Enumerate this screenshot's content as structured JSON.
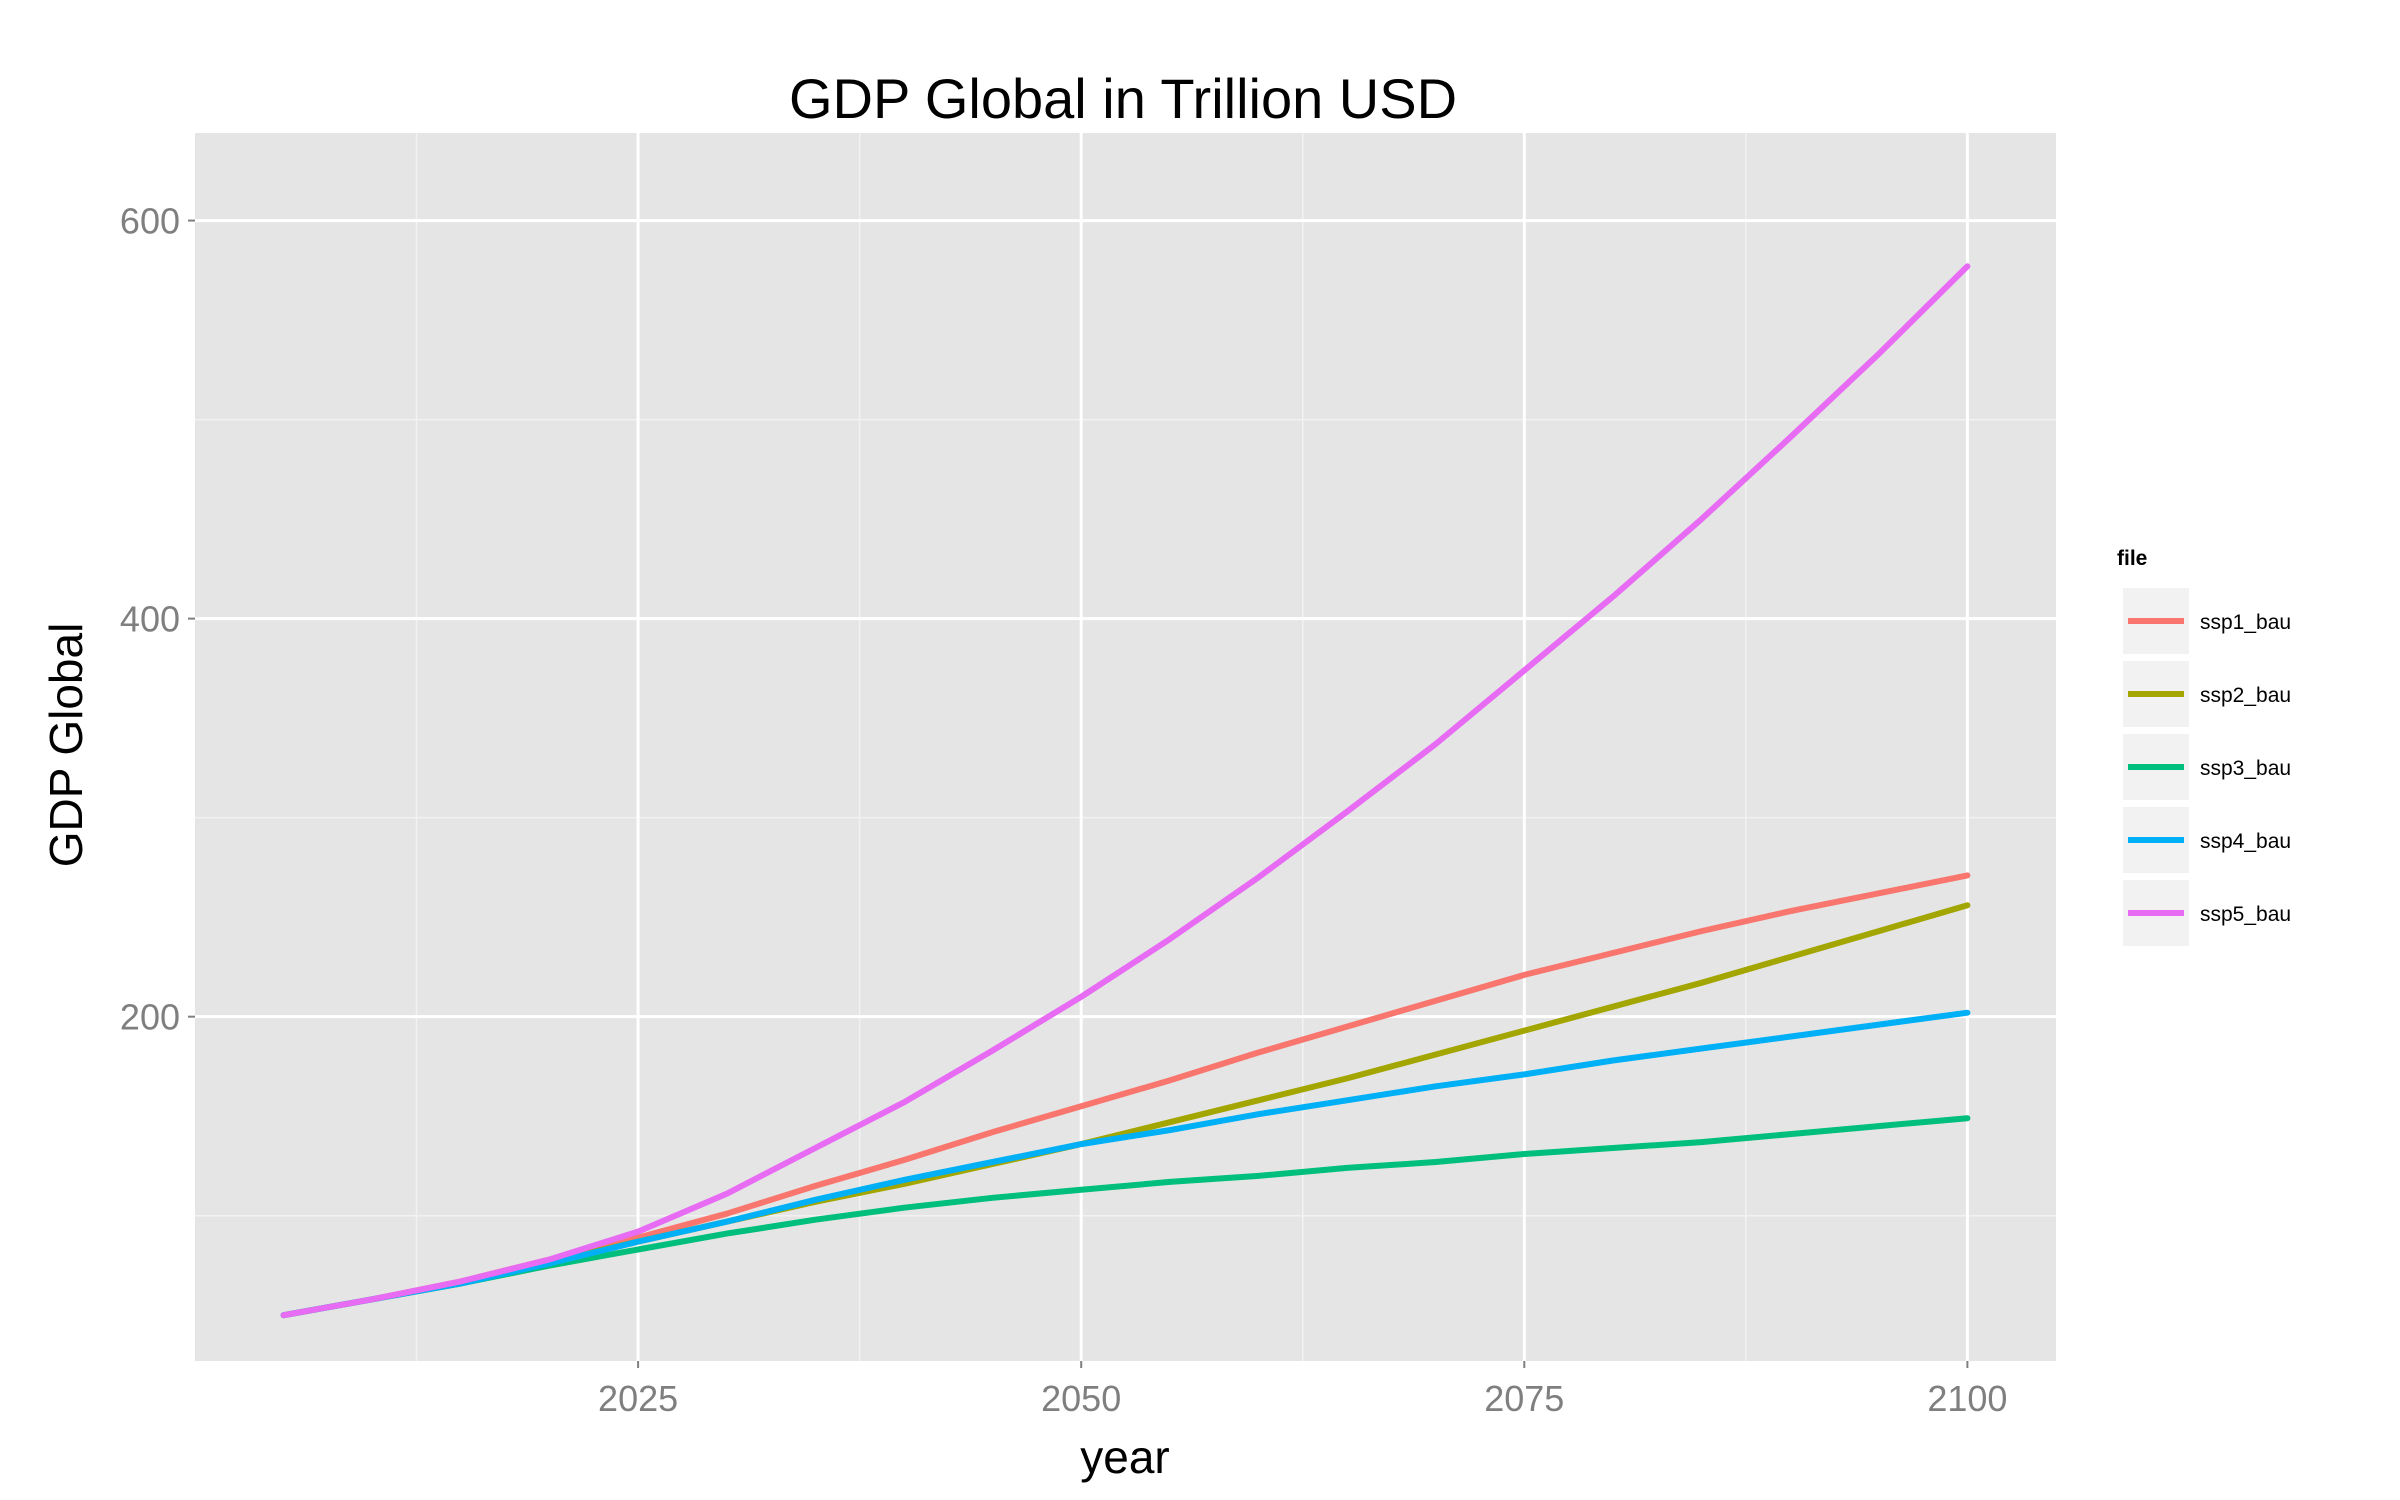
{
  "chart_data": {
    "type": "line",
    "title": "GDP Global in Trillion USD",
    "xlabel": "year",
    "ylabel": "GDP Global",
    "xlim": [
      2000,
      2105
    ],
    "ylim": [
      27,
      644
    ],
    "x_ticks": [
      2025,
      2050,
      2075,
      2100
    ],
    "y_ticks": [
      200,
      400,
      600
    ],
    "grid": true,
    "legend": {
      "title": "file",
      "position": "right"
    },
    "x": [
      2005,
      2010,
      2015,
      2020,
      2025,
      2030,
      2035,
      2040,
      2045,
      2050,
      2055,
      2060,
      2065,
      2070,
      2075,
      2080,
      2085,
      2090,
      2095,
      2100
    ],
    "series": [
      {
        "name": "ssp1_bau",
        "color": "#F8766D",
        "values": [
          50,
          58,
          67,
          78,
          89,
          101,
          115,
          128,
          142,
          155,
          168,
          182,
          195,
          208,
          221,
          232,
          243,
          253,
          262,
          271
        ]
      },
      {
        "name": "ssp2_bau",
        "color": "#A3A500",
        "values": [
          50,
          58,
          66,
          77,
          87,
          97,
          107,
          116,
          126,
          136,
          147,
          158,
          169,
          181,
          193,
          205,
          217,
          230,
          243,
          256
        ]
      },
      {
        "name": "ssp3_bau",
        "color": "#00BF7D",
        "values": [
          50,
          58,
          66,
          75,
          83,
          91,
          98,
          104,
          109,
          113,
          117,
          120,
          124,
          127,
          131,
          134,
          137,
          141,
          145,
          149
        ]
      },
      {
        "name": "ssp4_bau",
        "color": "#00B0F6",
        "values": [
          50,
          58,
          66,
          76,
          87,
          97,
          108,
          118,
          127,
          136,
          143,
          151,
          158,
          165,
          171,
          178,
          184,
          190,
          196,
          202
        ]
      },
      {
        "name": "ssp5_bau",
        "color": "#E76BF3",
        "values": [
          50,
          58,
          67,
          78,
          92,
          111,
          134,
          157,
          183,
          210,
          239,
          270,
          303,
          337,
          374,
          411,
          450,
          491,
          533,
          577
        ]
      }
    ]
  }
}
